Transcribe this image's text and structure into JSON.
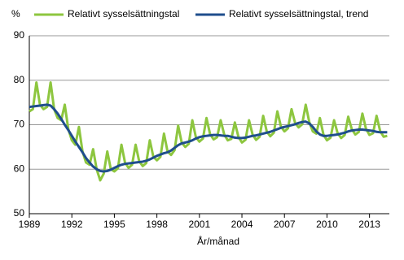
{
  "chart_data": {
    "type": "line",
    "y_unit": "%",
    "x_label": "År/månad",
    "x": [
      1989,
      1989.25,
      1989.5,
      1989.75,
      1990,
      1990.25,
      1990.5,
      1990.75,
      1991,
      1991.25,
      1991.5,
      1991.75,
      1992,
      1992.25,
      1992.5,
      1992.75,
      1993,
      1993.25,
      1993.5,
      1993.75,
      1994,
      1994.25,
      1994.5,
      1994.75,
      1995,
      1995.25,
      1995.5,
      1995.75,
      1996,
      1996.25,
      1996.5,
      1996.75,
      1997,
      1997.25,
      1997.5,
      1997.75,
      1998,
      1998.25,
      1998.5,
      1998.75,
      1999,
      1999.25,
      1999.5,
      1999.75,
      2000,
      2000.25,
      2000.5,
      2000.75,
      2001,
      2001.25,
      2001.5,
      2001.75,
      2002,
      2002.25,
      2002.5,
      2002.75,
      2003,
      2003.25,
      2003.5,
      2003.75,
      2004,
      2004.25,
      2004.5,
      2004.75,
      2005,
      2005.25,
      2005.5,
      2005.75,
      2006,
      2006.25,
      2006.5,
      2006.75,
      2007,
      2007.25,
      2007.5,
      2007.75,
      2008,
      2008.25,
      2008.5,
      2008.75,
      2009,
      2009.25,
      2009.5,
      2009.75,
      2010,
      2010.25,
      2010.5,
      2010.75,
      2011,
      2011.25,
      2011.5,
      2011.75,
      2012,
      2012.25,
      2012.5,
      2012.75,
      2013,
      2013.25,
      2013.5,
      2013.75,
      2014,
      2014.25
    ],
    "series": [
      {
        "name": "Relativt sysselsättningstal",
        "color": "#8dc63f",
        "width": 3,
        "values": [
          73,
          73.5,
          79.5,
          74.5,
          73.5,
          74,
          79.5,
          73.5,
          71.5,
          71,
          74.5,
          69,
          66.5,
          65.5,
          69.5,
          64,
          61.5,
          61,
          64.5,
          60,
          57.5,
          59,
          64,
          60,
          59.5,
          60.2,
          65.5,
          61.5,
          60.3,
          61,
          65.5,
          61.8,
          60.7,
          61.4,
          66.5,
          62.8,
          62,
          62.8,
          68,
          64,
          63.2,
          64.3,
          69.8,
          66,
          65,
          65.7,
          71,
          67.2,
          66.2,
          66.9,
          71.5,
          67.9,
          66.7,
          67.2,
          71,
          67.8,
          66.5,
          66.8,
          70.5,
          67.3,
          66,
          66.6,
          71,
          67.8,
          66.6,
          67.3,
          72,
          68.5,
          67.4,
          68.2,
          73,
          69.6,
          68.5,
          69.2,
          73.5,
          70.4,
          69.4,
          70.1,
          74.5,
          70.6,
          68.5,
          68,
          71.5,
          67.8,
          66.5,
          67.1,
          71,
          68.1,
          67,
          67.7,
          71.8,
          69,
          67.8,
          68.4,
          72.5,
          69.1,
          67.7,
          68.1,
          72,
          68.6,
          67.3,
          67.5
        ]
      },
      {
        "name": "Relativt sysselsättningstal, trend",
        "color": "#1f4e8c",
        "width": 3,
        "values": [
          74,
          74.1,
          74.2,
          74.3,
          74.4,
          74.5,
          74.3,
          73.5,
          72.5,
          71.3,
          70,
          68.8,
          67.5,
          66.2,
          65,
          63.8,
          62.5,
          61.5,
          60.6,
          60,
          59.6,
          59.5,
          59.6,
          59.9,
          60.3,
          60.7,
          61,
          61.2,
          61.3,
          61.4,
          61.5,
          61.6,
          61.7,
          61.9,
          62.2,
          62.6,
          63,
          63.3,
          63.6,
          63.8,
          64.2,
          64.8,
          65.4,
          65.8,
          66,
          66.2,
          66.5,
          66.9,
          67.2,
          67.4,
          67.5,
          67.6,
          67.7,
          67.7,
          67.6,
          67.5,
          67.5,
          67.3,
          67.1,
          67,
          67,
          67.1,
          67.3,
          67.5,
          67.6,
          67.8,
          68,
          68.2,
          68.4,
          68.7,
          69,
          69.3,
          69.5,
          69.7,
          69.9,
          70.1,
          70.4,
          70.6,
          70.7,
          70.3,
          69.5,
          68.5,
          67.8,
          67.5,
          67.5,
          67.6,
          67.7,
          67.8,
          68,
          68.2,
          68.5,
          68.7,
          68.8,
          68.9,
          68.9,
          68.8,
          68.7,
          68.6,
          68.4,
          68.3,
          68.3,
          68.3
        ]
      }
    ],
    "xlim": [
      1989,
      2014.4
    ],
    "xticks": [
      1989,
      1992,
      1995,
      1998,
      2001,
      2004,
      2007,
      2010,
      2013
    ],
    "ylim": [
      50,
      90
    ],
    "yticks": [
      50,
      60,
      70,
      80,
      90
    ],
    "grid": true
  }
}
